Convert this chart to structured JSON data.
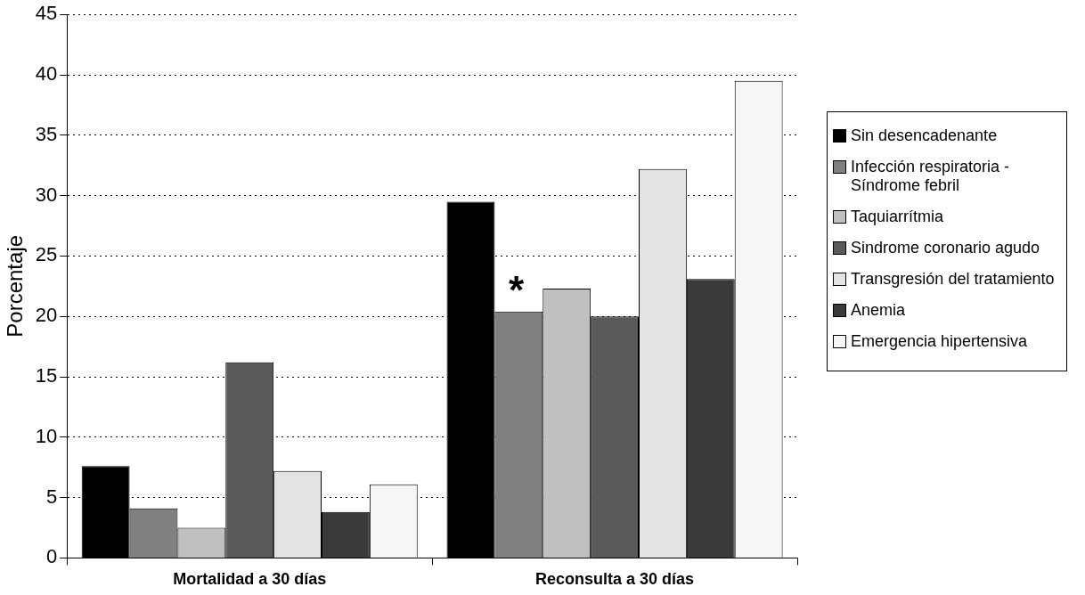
{
  "chart_data": {
    "type": "bar",
    "ylabel": "Porcentaje",
    "categories": [
      "Mortalidad a 30 días",
      "Reconsulta a 30 días"
    ],
    "series": [
      {
        "name": "Sin desencadenante",
        "color": "#000000",
        "values": [
          7.6,
          29.5
        ]
      },
      {
        "name": "Infección respiratoria - Síndrome febril",
        "color": "#808080",
        "values": [
          4.1,
          20.4
        ]
      },
      {
        "name": "Taquiarrítmia",
        "color": "#c0c0c0",
        "values": [
          2.5,
          22.3
        ]
      },
      {
        "name": "Sindrome coronario agudo",
        "color": "#5a5a5a",
        "values": [
          16.2,
          20.0
        ]
      },
      {
        "name": "Transgresión del tratamiento",
        "color": "#e4e4e4",
        "values": [
          7.2,
          32.2
        ]
      },
      {
        "name": "Anemia",
        "color": "#3a3a3a",
        "values": [
          3.8,
          23.1
        ]
      },
      {
        "name": "Emergencia hipertensiva",
        "color": "#f6f6f6",
        "values": [
          6.1,
          39.5
        ]
      }
    ],
    "annotations": [
      "*"
    ],
    "ylim": [
      0,
      45
    ],
    "yticks": [
      0,
      5,
      10,
      15,
      20,
      25,
      30,
      35,
      40,
      45
    ],
    "grid": "y",
    "legend": "right"
  }
}
